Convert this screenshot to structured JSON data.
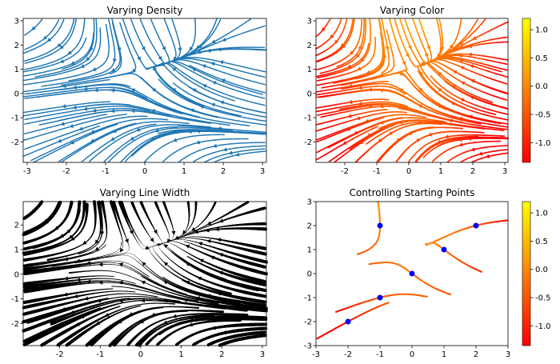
{
  "chart_data": [
    {
      "type": "streamplot",
      "title": "Varying Density",
      "xlim": [
        -3,
        3
      ],
      "ylim": [
        -3,
        3
      ],
      "xticks": [
        "-3",
        "-2",
        "-1",
        "0",
        "1",
        "2",
        "3"
      ],
      "yticks": [
        "-2",
        "-1",
        "0",
        "1",
        "2",
        "3"
      ],
      "color": "#1f77b4",
      "field": "U = -1 - X^2 + Y, V = 1 + X - Y^2"
    },
    {
      "type": "streamplot",
      "title": "Varying Color",
      "xlim": [
        -3,
        3
      ],
      "ylim": [
        -3,
        3
      ],
      "xticks": [
        "-2",
        "-1",
        "0",
        "1",
        "2",
        "3"
      ],
      "yticks": [
        "-2",
        "-1",
        "0",
        "1",
        "2",
        "3"
      ],
      "colormap": "autumn",
      "colorbar": {
        "ticks": [
          "1.0",
          "0.5",
          "0.0",
          "-0.5",
          "-1.0"
        ],
        "range": [
          -1.35,
          1.2
        ]
      }
    },
    {
      "type": "streamplot",
      "title": "Varying Line Width",
      "xlim": [
        -3,
        3
      ],
      "ylim": [
        -3,
        3
      ],
      "xticks": [
        "-2",
        "-1",
        "0",
        "1",
        "2",
        "3"
      ],
      "yticks": [
        "-2",
        "-1",
        "0",
        "1",
        "2"
      ],
      "color": "#000000"
    },
    {
      "type": "streamplot",
      "title": "Controlling Starting Points",
      "xlim": [
        -3,
        3
      ],
      "ylim": [
        -3,
        3
      ],
      "xticks": [
        "-3",
        "-2",
        "-1",
        "0",
        "1",
        "2",
        "3"
      ],
      "yticks": [
        "-3",
        "-2",
        "-1",
        "0",
        "1",
        "2",
        "3"
      ],
      "colormap": "autumn",
      "start_points": [
        [
          -2,
          -2
        ],
        [
          -1,
          -1
        ],
        [
          0,
          0
        ],
        [
          1,
          1
        ],
        [
          2,
          2
        ],
        [
          -1,
          2
        ]
      ],
      "start_point_color": "#0000ff",
      "colorbar": {
        "ticks": [
          "1.0",
          "0.5",
          "0.0",
          "-0.5",
          "-1.0"
        ],
        "range": [
          -1.35,
          1.2
        ]
      }
    }
  ]
}
